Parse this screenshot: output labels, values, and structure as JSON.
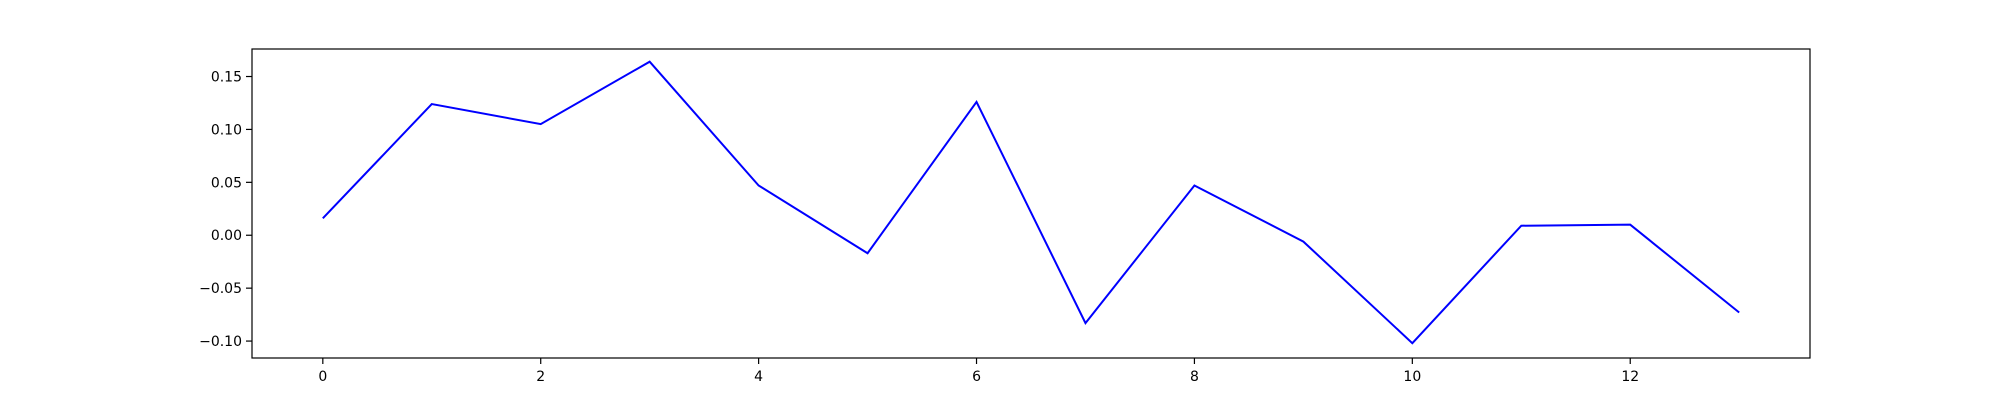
{
  "chart_data": {
    "type": "line",
    "title": "",
    "xlabel": "",
    "ylabel": "",
    "xlim": [
      -0.65,
      13.65
    ],
    "ylim": [
      -0.116,
      0.176
    ],
    "x_ticks": [
      0,
      2,
      4,
      6,
      8,
      10,
      12
    ],
    "x_tick_labels": [
      "0",
      "2",
      "4",
      "6",
      "8",
      "10",
      "12"
    ],
    "y_ticks": [
      -0.1,
      -0.05,
      0.0,
      0.05,
      0.1,
      0.15
    ],
    "y_tick_labels": [
      "−0.10",
      "−0.05",
      "0.00",
      "0.05",
      "0.10",
      "0.15"
    ],
    "grid": false,
    "series": [
      {
        "color": "#0000ff",
        "x": [
          0,
          1,
          2,
          3,
          4,
          5,
          6,
          7,
          8,
          9,
          10,
          11,
          12,
          13
        ],
        "y": [
          0.016,
          0.124,
          0.105,
          0.164,
          0.047,
          -0.017,
          0.126,
          -0.083,
          0.047,
          -0.006,
          -0.102,
          0.009,
          0.01,
          -0.073
        ]
      }
    ]
  }
}
